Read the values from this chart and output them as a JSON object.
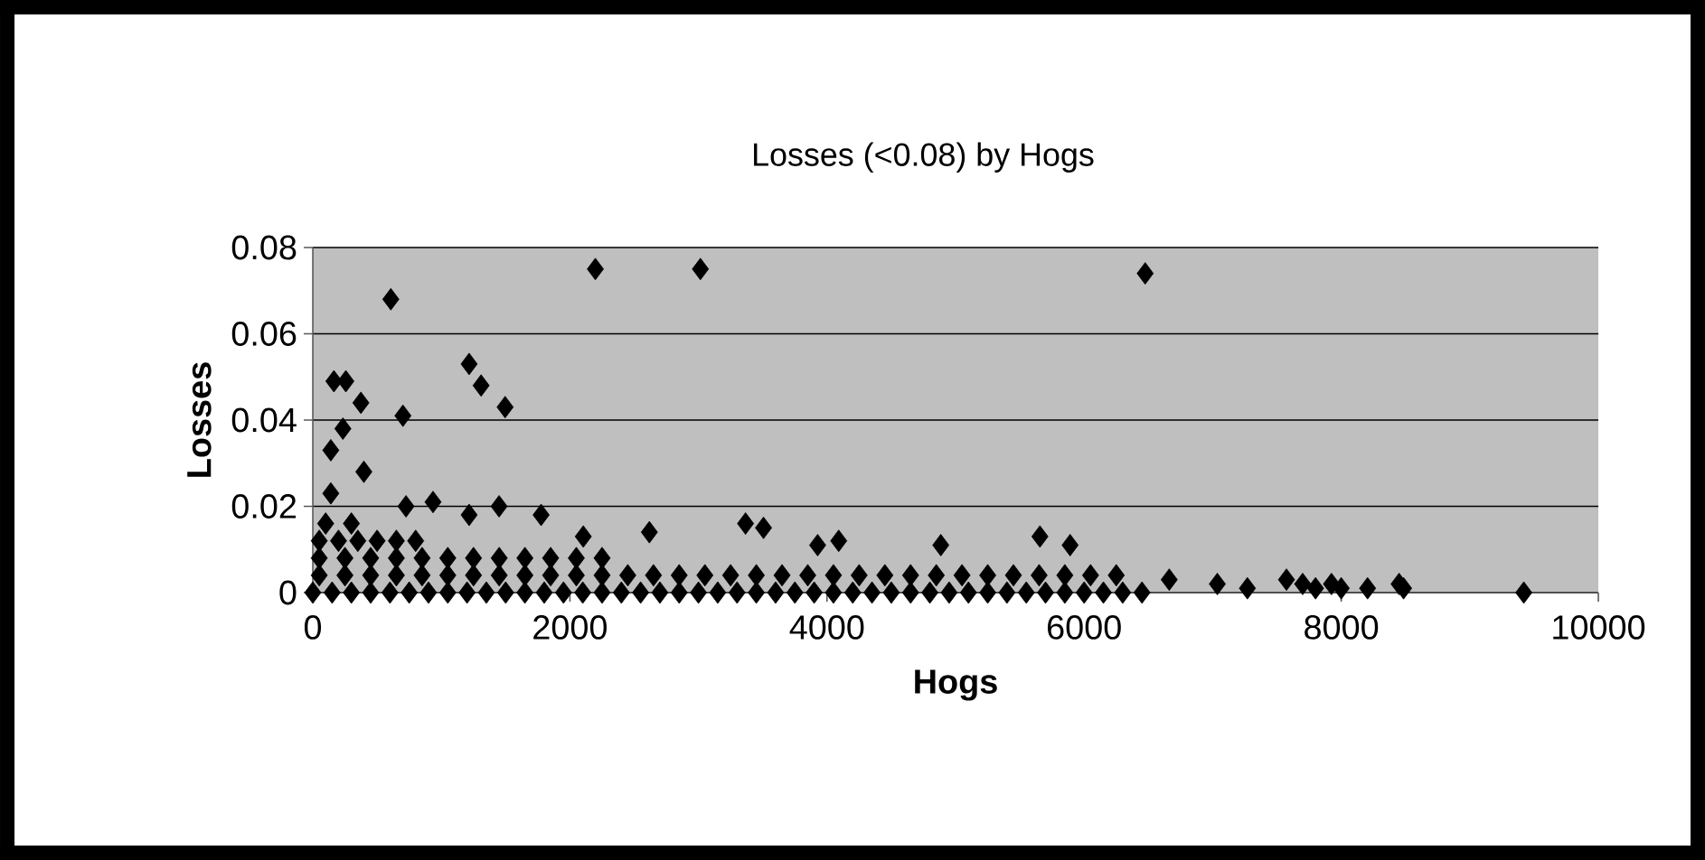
{
  "chart_data": {
    "type": "scatter",
    "title": "Losses (<0.08) by Hogs",
    "xlabel": "Hogs",
    "ylabel": "Losses",
    "color": "#000000",
    "marker": "diamond",
    "grid": "y",
    "xlim": [
      0,
      10000
    ],
    "ylim": [
      0,
      0.08
    ],
    "xticks": [
      0,
      2000,
      4000,
      6000,
      8000,
      10000
    ],
    "yticks": [
      0,
      0.02,
      0.04,
      0.06,
      0.08
    ],
    "x": [
      607,
      2198,
      3015,
      6475,
      1216,
      1309,
      1496,
      164,
      257,
      374,
      234,
      140,
      701,
      397,
      140,
      725,
      935,
      1216,
      1449,
      1776,
      2104,
      2618,
      3366,
      3506,
      3927,
      4091,
      4885,
      5656,
      5891,
      6662,
      7036,
      7270,
      7574,
      7700,
      7800,
      7924,
      8000,
      8205,
      8450,
      8485,
      9420,
      0,
      150,
      300,
      450,
      600,
      750,
      900,
      1050,
      1200,
      1350,
      1500,
      1650,
      1800,
      1950,
      2100,
      2250,
      2400,
      2550,
      2700,
      2850,
      3000,
      3150,
      3300,
      3450,
      3600,
      3750,
      3900,
      4050,
      4200,
      4350,
      4500,
      4650,
      4800,
      4950,
      5100,
      5250,
      5400,
      5550,
      5700,
      5850,
      6000,
      6150,
      6300,
      6450,
      50,
      250,
      450,
      650,
      850,
      1050,
      1250,
      1450,
      1650,
      1850,
      2050,
      2250,
      2450,
      2650,
      2850,
      3050,
      3250,
      3450,
      3650,
      3850,
      4050,
      4250,
      4450,
      4650,
      4850,
      5050,
      5250,
      5450,
      5650,
      5850,
      6050,
      6250,
      50,
      250,
      450,
      650,
      850,
      1050,
      1250,
      1450,
      1650,
      1850,
      2050,
      2250,
      50,
      200,
      350,
      500,
      650,
      800,
      100,
      300
    ],
    "values": [
      0.068,
      0.075,
      0.075,
      0.074,
      0.053,
      0.048,
      0.043,
      0.049,
      0.049,
      0.044,
      0.038,
      0.033,
      0.041,
      0.028,
      0.023,
      0.02,
      0.021,
      0.018,
      0.02,
      0.018,
      0.013,
      0.014,
      0.016,
      0.015,
      0.011,
      0.012,
      0.011,
      0.013,
      0.011,
      0.003,
      0.002,
      0.001,
      0.003,
      0.002,
      0.001,
      0.002,
      0.001,
      0.001,
      0.002,
      0.001,
      0,
      0,
      0,
      0,
      0,
      0,
      0,
      0,
      0,
      0,
      0,
      0,
      0,
      0,
      0,
      0,
      0,
      0,
      0,
      0,
      0,
      0,
      0,
      0,
      0,
      0,
      0,
      0,
      0,
      0,
      0,
      0,
      0,
      0,
      0,
      0,
      0,
      0,
      0,
      0,
      0,
      0,
      0,
      0,
      0,
      0.004,
      0.004,
      0.004,
      0.004,
      0.004,
      0.004,
      0.004,
      0.004,
      0.004,
      0.004,
      0.004,
      0.004,
      0.004,
      0.004,
      0.004,
      0.004,
      0.004,
      0.004,
      0.004,
      0.004,
      0.004,
      0.004,
      0.004,
      0.004,
      0.004,
      0.004,
      0.004,
      0.004,
      0.004,
      0.004,
      0.004,
      0.004,
      0.008,
      0.008,
      0.008,
      0.008,
      0.008,
      0.008,
      0.008,
      0.008,
      0.008,
      0.008,
      0.008,
      0.008,
      0.012,
      0.012,
      0.012,
      0.012,
      0.012,
      0.012,
      0.016,
      0.016
    ]
  }
}
